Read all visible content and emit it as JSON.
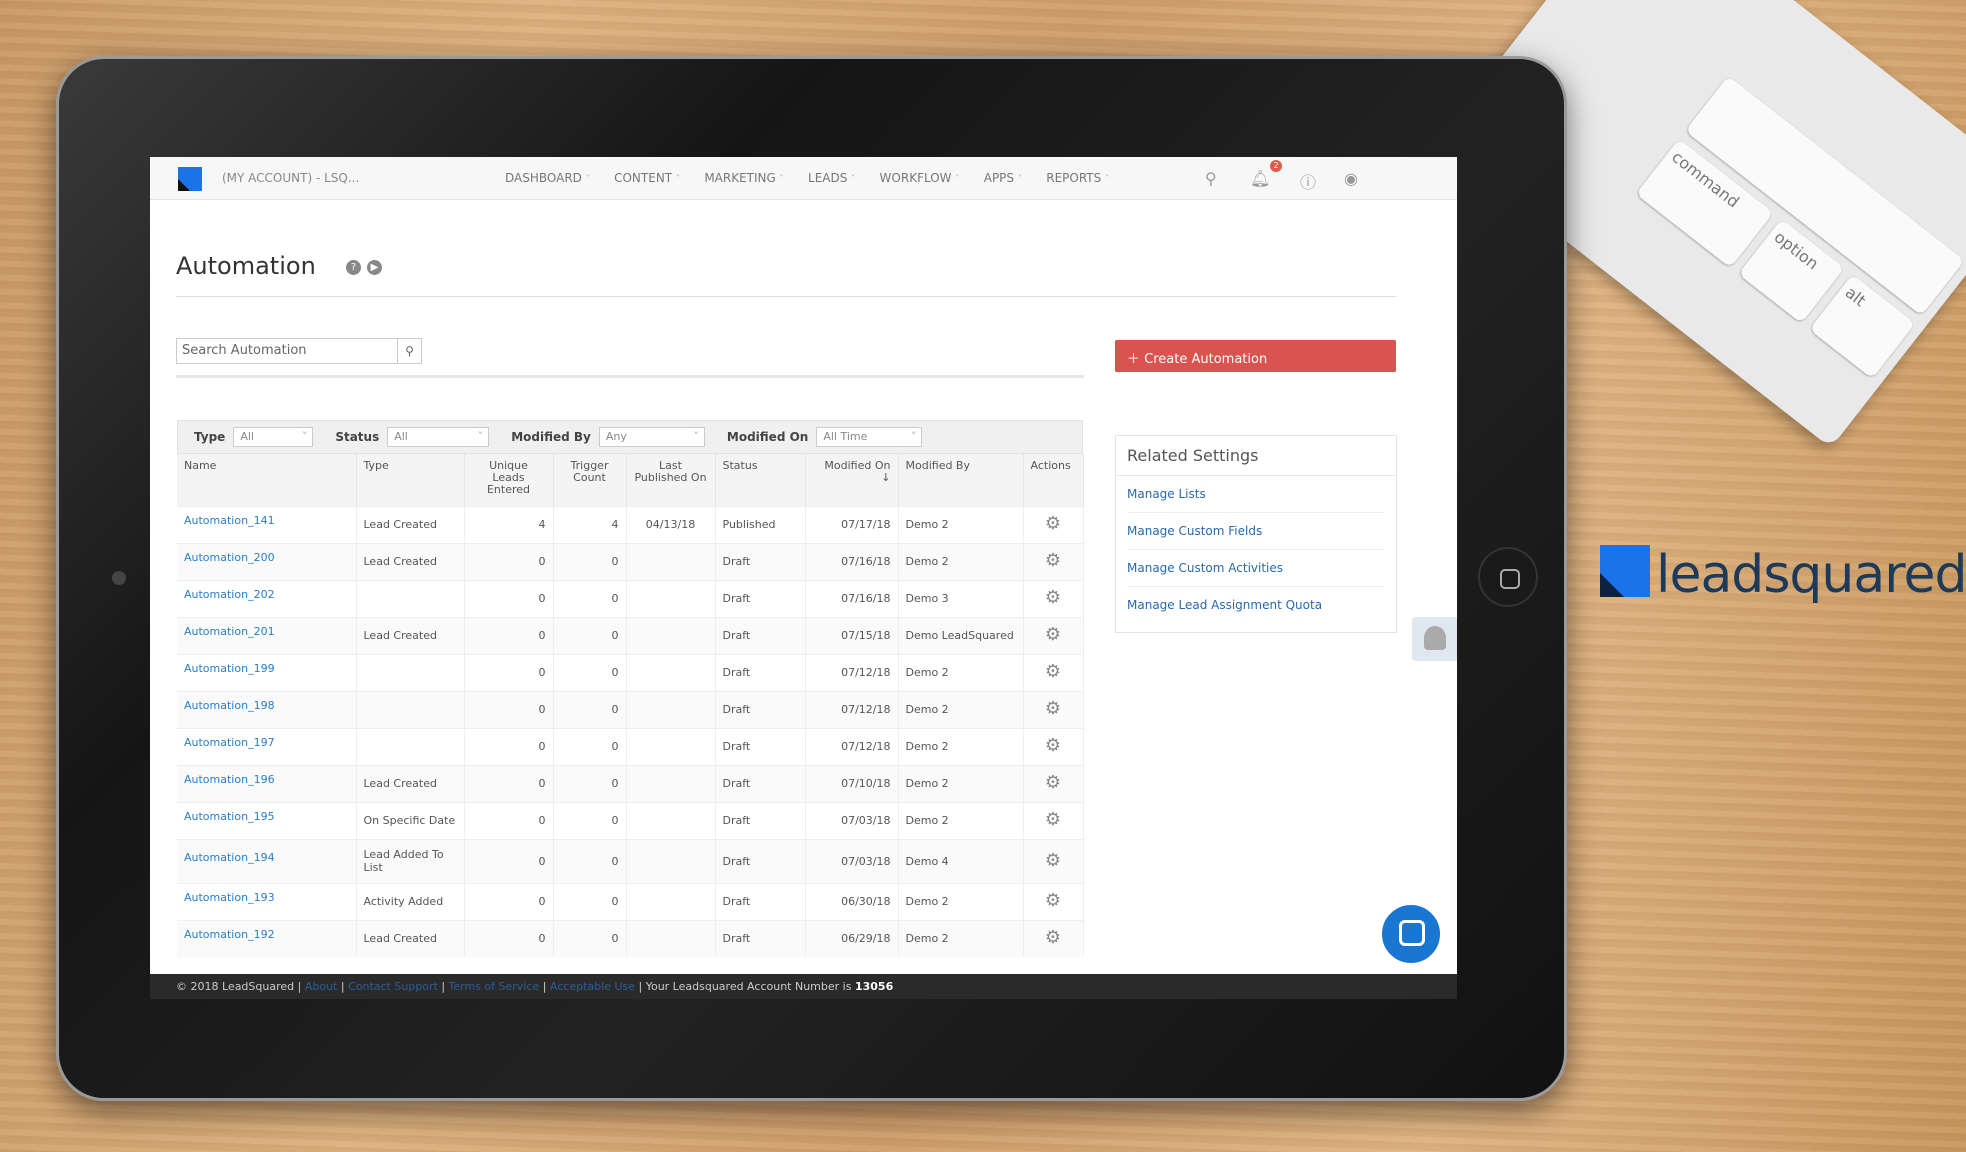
{
  "nav": {
    "account": "(MY ACCOUNT) - LSQ...",
    "menu": [
      "DASHBOARD",
      "CONTENT",
      "MARKETING",
      "LEADS",
      "WORKFLOW",
      "APPS",
      "REPORTS"
    ],
    "notification_count": "2",
    "icons": [
      "search-icon",
      "bell-icon",
      "help-icon",
      "user-icon"
    ]
  },
  "page": {
    "title": "Automation",
    "search_placeholder": "Search Automation",
    "create_label": "Create Automation"
  },
  "filters": [
    {
      "label": "Type",
      "value": "All"
    },
    {
      "label": "Status",
      "value": "All"
    },
    {
      "label": "Modified By",
      "value": "Any"
    },
    {
      "label": "Modified On",
      "value": "All Time"
    }
  ],
  "table": {
    "headers": [
      "Name",
      "Type",
      "Unique Leads Entered",
      "Trigger Count",
      "Last Published On",
      "Status",
      "Modified On ↓",
      "Modified By",
      "Actions"
    ],
    "rows": [
      [
        "Automation_141",
        "Lead Created",
        "4",
        "4",
        "04/13/18",
        "Published",
        "07/17/18",
        "Demo 2"
      ],
      [
        "Automation_200",
        "Lead Created",
        "0",
        "0",
        "",
        "Draft",
        "07/16/18",
        "Demo 2"
      ],
      [
        "Automation_202",
        "",
        "0",
        "0",
        "",
        "Draft",
        "07/16/18",
        "Demo 3"
      ],
      [
        "Automation_201",
        "Lead Created",
        "0",
        "0",
        "",
        "Draft",
        "07/15/18",
        "Demo LeadSquared"
      ],
      [
        "Automation_199",
        "",
        "0",
        "0",
        "",
        "Draft",
        "07/12/18",
        "Demo 2"
      ],
      [
        "Automation_198",
        "",
        "0",
        "0",
        "",
        "Draft",
        "07/12/18",
        "Demo 2"
      ],
      [
        "Automation_197",
        "",
        "0",
        "0",
        "",
        "Draft",
        "07/12/18",
        "Demo 2"
      ],
      [
        "Automation_196",
        "Lead Created",
        "0",
        "0",
        "",
        "Draft",
        "07/10/18",
        "Demo 2"
      ],
      [
        "Automation_195",
        "On Specific Date",
        "0",
        "0",
        "",
        "Draft",
        "07/03/18",
        "Demo 2"
      ],
      [
        "Automation_194",
        "Lead Added To List",
        "0",
        "0",
        "",
        "Draft",
        "07/03/18",
        "Demo 4"
      ],
      [
        "Automation_193",
        "Activity Added",
        "0",
        "0",
        "",
        "Draft",
        "06/30/18",
        "Demo 2"
      ],
      [
        "Automation_192",
        "Lead Created",
        "0",
        "0",
        "",
        "Draft",
        "06/29/18",
        "Demo 2"
      ]
    ]
  },
  "related": {
    "title": "Related Settings",
    "links": [
      "Manage Lists",
      "Manage Custom Fields",
      "Manage Custom Activities",
      "Manage Lead Assignment Quota"
    ]
  },
  "footer": {
    "copyright": "© 2018 LeadSquared |",
    "links": [
      "About",
      "Contact Support",
      "Terms of Service",
      "Acceptable Use"
    ],
    "account_text": "| Your Leadsquared Account Number is",
    "account_number": "13056"
  },
  "keyboard": {
    "keys": [
      "command",
      "option",
      "alt"
    ]
  },
  "brand": {
    "name": "leadsquared"
  },
  "colors": {
    "accent": "#d9534f",
    "link": "#2a7ec4",
    "brand": "#1a73e8"
  }
}
